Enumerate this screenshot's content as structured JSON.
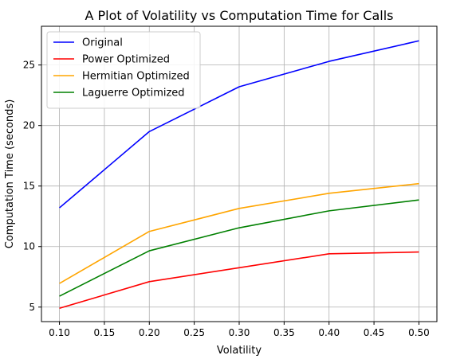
{
  "chart_data": {
    "type": "line",
    "title": "A Plot of Volatility vs Computation Time for Calls",
    "xlabel": "Volatility",
    "ylabel": "Computation Time (seconds)",
    "x": [
      0.1,
      0.2,
      0.3,
      0.4,
      0.5
    ],
    "xlim": [
      0.08,
      0.52
    ],
    "ylim": [
      3.8,
      28.2
    ],
    "xticks": [
      0.1,
      0.15,
      0.2,
      0.25,
      0.3,
      0.35,
      0.4,
      0.45,
      0.5
    ],
    "xtick_labels": [
      "0.10",
      "0.15",
      "0.20",
      "0.25",
      "0.30",
      "0.35",
      "0.40",
      "0.45",
      "0.50"
    ],
    "yticks": [
      5,
      10,
      15,
      20,
      25
    ],
    "ytick_labels": [
      "5",
      "10",
      "15",
      "20",
      "25"
    ],
    "grid": true,
    "legend_position": "top-left",
    "series": [
      {
        "name": "Original",
        "color": "#0000ff",
        "values": [
          13.2,
          19.5,
          23.2,
          25.3,
          27.0
        ]
      },
      {
        "name": "Power Optimized",
        "color": "#ff0000",
        "values": [
          4.9,
          7.1,
          8.25,
          9.4,
          9.55
        ]
      },
      {
        "name": "Hermitian Optimized",
        "color": "#ffa500",
        "values": [
          6.95,
          11.25,
          13.15,
          14.4,
          15.2
        ]
      },
      {
        "name": "Laguerre Optimized",
        "color": "#008000",
        "values": [
          5.9,
          9.65,
          11.55,
          12.95,
          13.85
        ]
      }
    ]
  }
}
